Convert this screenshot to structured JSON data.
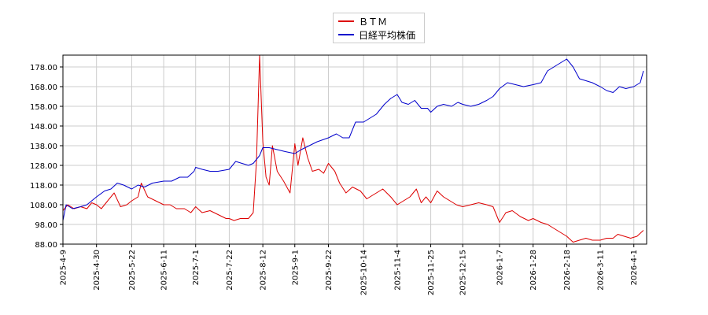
{
  "chart_data": {
    "type": "line",
    "title": "",
    "xlabel": "",
    "ylabel": "",
    "ylim": [
      88,
      184
    ],
    "yticks": [
      88,
      98,
      108,
      118,
      128,
      138,
      148,
      158,
      168,
      178
    ],
    "ytick_labels": [
      "88.00",
      "98.00",
      "108.00",
      "118.00",
      "128.00",
      "138.00",
      "148.00",
      "158.00",
      "168.00",
      "178.00"
    ],
    "xticks": [
      "2025-4-9",
      "2025-4-30",
      "2025-5-22",
      "2025-6-11",
      "2025-7-1",
      "2025-7-22",
      "2025-8-12",
      "2025-9-1",
      "2025-9-22",
      "2025-10-14",
      "2025-11-4",
      "2025-11-25",
      "2025-12-15",
      "2026-1-7",
      "2026-1-28",
      "2026-2-18",
      "2026-3-11",
      "2026-4-1"
    ],
    "grid": true,
    "legend_position": "top-center",
    "series": [
      {
        "name": "ＢＴＭ",
        "color": "#dd0000",
        "points": [
          [
            "2025-4-9",
            105
          ],
          [
            "2025-4-12",
            108
          ],
          [
            "2025-4-16",
            106
          ],
          [
            "2025-4-20",
            107
          ],
          [
            "2025-4-24",
            106
          ],
          [
            "2025-4-27",
            109
          ],
          [
            "2025-4-30",
            108
          ],
          [
            "2025-5-3",
            106
          ],
          [
            "2025-5-7",
            110
          ],
          [
            "2025-5-11",
            114
          ],
          [
            "2025-5-15",
            107
          ],
          [
            "2025-5-19",
            108
          ],
          [
            "2025-5-22",
            110
          ],
          [
            "2025-5-26",
            112
          ],
          [
            "2025-5-28",
            119
          ],
          [
            "2025-6-1",
            112
          ],
          [
            "2025-6-6",
            110
          ],
          [
            "2025-6-11",
            108
          ],
          [
            "2025-6-15",
            108
          ],
          [
            "2025-6-19",
            106
          ],
          [
            "2025-6-24",
            106
          ],
          [
            "2025-6-28",
            104
          ],
          [
            "2025-7-1",
            107
          ],
          [
            "2025-7-5",
            104
          ],
          [
            "2025-7-10",
            105
          ],
          [
            "2025-7-15",
            103
          ],
          [
            "2025-7-20",
            101
          ],
          [
            "2025-7-22",
            101
          ],
          [
            "2025-7-25",
            100
          ],
          [
            "2025-7-29",
            101
          ],
          [
            "2025-8-3",
            101
          ],
          [
            "2025-8-6",
            104
          ],
          [
            "2025-8-8",
            130
          ],
          [
            "2025-8-10",
            184
          ],
          [
            "2025-8-12",
            140
          ],
          [
            "2025-8-14",
            122
          ],
          [
            "2025-8-16",
            118
          ],
          [
            "2025-8-18",
            138
          ],
          [
            "2025-8-21",
            125
          ],
          [
            "2025-8-25",
            120
          ],
          [
            "2025-8-29",
            114
          ],
          [
            "2025-9-1",
            139
          ],
          [
            "2025-9-3",
            128
          ],
          [
            "2025-9-6",
            142
          ],
          [
            "2025-9-9",
            132
          ],
          [
            "2025-9-12",
            125
          ],
          [
            "2025-9-16",
            126
          ],
          [
            "2025-9-19",
            124
          ],
          [
            "2025-9-22",
            129
          ],
          [
            "2025-9-26",
            125
          ],
          [
            "2025-9-29",
            119
          ],
          [
            "2025-10-3",
            114
          ],
          [
            "2025-10-7",
            117
          ],
          [
            "2025-10-12",
            115
          ],
          [
            "2025-10-16",
            111
          ],
          [
            "2025-10-20",
            113
          ],
          [
            "2025-10-26",
            116
          ],
          [
            "2025-10-31",
            112
          ],
          [
            "2025-11-4",
            108
          ],
          [
            "2025-11-8",
            110
          ],
          [
            "2025-11-12",
            112
          ],
          [
            "2025-11-16",
            116
          ],
          [
            "2025-11-19",
            109
          ],
          [
            "2025-11-22",
            112
          ],
          [
            "2025-11-25",
            109
          ],
          [
            "2025-11-29",
            115
          ],
          [
            "2025-12-3",
            112
          ],
          [
            "2025-12-7",
            110
          ],
          [
            "2025-12-11",
            108
          ],
          [
            "2025-12-15",
            107
          ],
          [
            "2025-12-20",
            108
          ],
          [
            "2025-12-25",
            109
          ],
          [
            "2025-12-30",
            108
          ],
          [
            "2026-1-3",
            107
          ],
          [
            "2026-1-7",
            99
          ],
          [
            "2026-1-11",
            104
          ],
          [
            "2026-1-15",
            105
          ],
          [
            "2026-1-20",
            102
          ],
          [
            "2026-1-25",
            100
          ],
          [
            "2026-1-28",
            101
          ],
          [
            "2026-2-2",
            99
          ],
          [
            "2026-2-6",
            98
          ],
          [
            "2026-2-10",
            96
          ],
          [
            "2026-2-14",
            94
          ],
          [
            "2026-2-18",
            92
          ],
          [
            "2026-2-22",
            89
          ],
          [
            "2026-2-26",
            90
          ],
          [
            "2026-3-2",
            91
          ],
          [
            "2026-3-6",
            90
          ],
          [
            "2026-3-11",
            90
          ],
          [
            "2026-3-15",
            91
          ],
          [
            "2026-3-19",
            91
          ],
          [
            "2026-3-22",
            93
          ],
          [
            "2026-3-26",
            92
          ],
          [
            "2026-3-30",
            91
          ],
          [
            "2026-4-3",
            92
          ],
          [
            "2026-4-7",
            95
          ]
        ]
      },
      {
        "name": "日経平均株価",
        "color": "#0000cc",
        "points": [
          [
            "2025-4-9",
            100
          ],
          [
            "2025-4-11",
            108
          ],
          [
            "2025-4-15",
            106
          ],
          [
            "2025-4-20",
            107
          ],
          [
            "2025-4-24",
            108
          ],
          [
            "2025-4-27",
            110
          ],
          [
            "2025-4-30",
            112
          ],
          [
            "2025-5-5",
            115
          ],
          [
            "2025-5-9",
            116
          ],
          [
            "2025-5-13",
            119
          ],
          [
            "2025-5-17",
            118
          ],
          [
            "2025-5-22",
            116
          ],
          [
            "2025-5-26",
            118
          ],
          [
            "2025-5-30",
            117
          ],
          [
            "2025-6-4",
            119
          ],
          [
            "2025-6-11",
            120
          ],
          [
            "2025-6-16",
            120
          ],
          [
            "2025-6-21",
            122
          ],
          [
            "2025-6-26",
            122
          ],
          [
            "2025-6-30",
            125
          ],
          [
            "2025-7-1",
            127
          ],
          [
            "2025-7-5",
            126
          ],
          [
            "2025-7-10",
            125
          ],
          [
            "2025-7-15",
            125
          ],
          [
            "2025-7-22",
            126
          ],
          [
            "2025-7-26",
            130
          ],
          [
            "2025-7-30",
            129
          ],
          [
            "2025-8-3",
            128
          ],
          [
            "2025-8-6",
            129
          ],
          [
            "2025-8-10",
            133
          ],
          [
            "2025-8-12",
            137
          ],
          [
            "2025-8-16",
            137
          ],
          [
            "2025-8-21",
            136
          ],
          [
            "2025-8-26",
            135
          ],
          [
            "2025-9-1",
            134
          ],
          [
            "2025-9-5",
            136
          ],
          [
            "2025-9-10",
            138
          ],
          [
            "2025-9-15",
            140
          ],
          [
            "2025-9-22",
            142
          ],
          [
            "2025-9-27",
            144
          ],
          [
            "2025-10-1",
            142
          ],
          [
            "2025-10-5",
            142
          ],
          [
            "2025-10-9",
            150
          ],
          [
            "2025-10-14",
            150
          ],
          [
            "2025-10-18",
            152
          ],
          [
            "2025-10-22",
            154
          ],
          [
            "2025-10-27",
            159
          ],
          [
            "2025-10-31",
            162
          ],
          [
            "2025-11-4",
            164
          ],
          [
            "2025-11-7",
            160
          ],
          [
            "2025-11-11",
            159
          ],
          [
            "2025-11-15",
            161
          ],
          [
            "2025-11-19",
            157
          ],
          [
            "2025-11-23",
            157
          ],
          [
            "2025-11-25",
            155
          ],
          [
            "2025-11-29",
            158
          ],
          [
            "2025-12-3",
            159
          ],
          [
            "2025-12-8",
            158
          ],
          [
            "2025-12-12",
            160
          ],
          [
            "2025-12-15",
            159
          ],
          [
            "2025-12-20",
            158
          ],
          [
            "2025-12-25",
            159
          ],
          [
            "2025-12-30",
            161
          ],
          [
            "2026-1-3",
            163
          ],
          [
            "2026-1-7",
            167
          ],
          [
            "2026-1-12",
            170
          ],
          [
            "2026-1-17",
            169
          ],
          [
            "2026-1-22",
            168
          ],
          [
            "2026-1-28",
            169
          ],
          [
            "2026-2-2",
            170
          ],
          [
            "2026-2-6",
            176
          ],
          [
            "2026-2-10",
            178
          ],
          [
            "2026-2-14",
            180
          ],
          [
            "2026-2-18",
            182
          ],
          [
            "2026-2-22",
            178
          ],
          [
            "2026-2-26",
            172
          ],
          [
            "2026-3-2",
            171
          ],
          [
            "2026-3-6",
            170
          ],
          [
            "2026-3-11",
            168
          ],
          [
            "2026-3-15",
            166
          ],
          [
            "2026-3-19",
            165
          ],
          [
            "2026-3-23",
            168
          ],
          [
            "2026-3-27",
            167
          ],
          [
            "2026-4-1",
            168
          ],
          [
            "2026-4-5",
            170
          ],
          [
            "2026-4-7",
            176
          ]
        ]
      }
    ]
  }
}
